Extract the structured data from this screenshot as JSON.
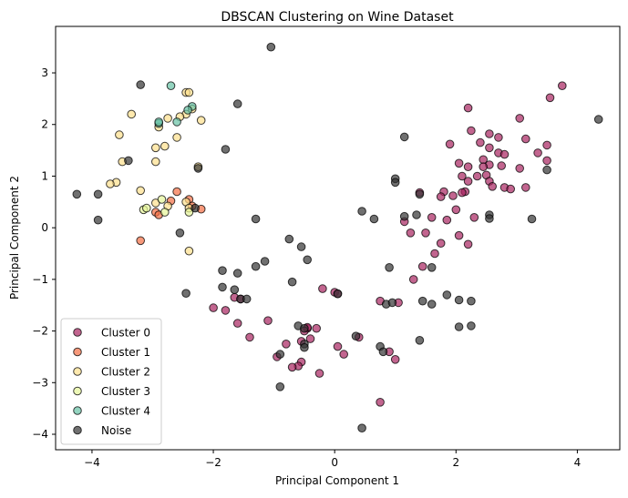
{
  "chart_data": {
    "type": "scatter",
    "title": "DBSCAN Clustering on Wine Dataset",
    "xlabel": "Principal Component 1",
    "ylabel": "Principal Component 2",
    "xlim": [
      -4.6,
      4.7
    ],
    "ylim": [
      -4.3,
      3.9
    ],
    "xticks": [
      -4,
      -2,
      0,
      2,
      4
    ],
    "yticks": [
      -4,
      -3,
      -2,
      -1,
      0,
      1,
      2,
      3
    ],
    "grid": false,
    "legend_position": "lower-left",
    "series": [
      {
        "name": "Cluster 0",
        "color": "#a8245f",
        "points": [
          [
            3.75,
            2.75
          ],
          [
            3.55,
            2.52
          ],
          [
            2.2,
            2.32
          ],
          [
            3.05,
            2.12
          ],
          [
            2.25,
            1.88
          ],
          [
            2.55,
            1.82
          ],
          [
            2.7,
            1.75
          ],
          [
            3.15,
            1.72
          ],
          [
            1.9,
            1.62
          ],
          [
            2.4,
            1.65
          ],
          [
            3.5,
            1.6
          ],
          [
            2.55,
            1.55
          ],
          [
            2.7,
            1.45
          ],
          [
            3.35,
            1.45
          ],
          [
            2.8,
            1.42
          ],
          [
            2.45,
            1.32
          ],
          [
            2.05,
            1.25
          ],
          [
            2.2,
            1.18
          ],
          [
            2.55,
            1.22
          ],
          [
            2.45,
            1.18
          ],
          [
            2.75,
            1.2
          ],
          [
            3.05,
            1.15
          ],
          [
            3.5,
            1.3
          ],
          [
            2.1,
            1.0
          ],
          [
            2.35,
            1.0
          ],
          [
            2.5,
            1.02
          ],
          [
            2.55,
            0.9
          ],
          [
            2.2,
            0.9
          ],
          [
            2.6,
            0.8
          ],
          [
            2.8,
            0.78
          ],
          [
            3.15,
            0.78
          ],
          [
            2.9,
            0.75
          ],
          [
            2.15,
            0.7
          ],
          [
            2.1,
            0.68
          ],
          [
            1.95,
            0.62
          ],
          [
            1.4,
            0.68
          ],
          [
            1.8,
            0.7
          ],
          [
            1.75,
            0.6
          ],
          [
            2.0,
            0.35
          ],
          [
            2.3,
            0.2
          ],
          [
            1.6,
            0.2
          ],
          [
            1.85,
            0.15
          ],
          [
            1.15,
            0.12
          ],
          [
            1.25,
            -0.1
          ],
          [
            1.5,
            -0.1
          ],
          [
            2.05,
            -0.15
          ],
          [
            2.2,
            -0.32
          ],
          [
            1.75,
            -0.3
          ],
          [
            1.65,
            -0.5
          ],
          [
            1.45,
            -0.75
          ],
          [
            1.3,
            -1.0
          ],
          [
            -1.65,
            -1.35
          ],
          [
            -1.55,
            -1.38
          ],
          [
            -2.0,
            -1.55
          ],
          [
            -1.8,
            -1.6
          ],
          [
            -1.1,
            -1.8
          ],
          [
            -1.6,
            -1.85
          ],
          [
            -0.2,
            -1.18
          ],
          [
            0.0,
            -1.25
          ],
          [
            0.05,
            -1.28
          ],
          [
            0.75,
            -1.42
          ],
          [
            1.05,
            -1.45
          ],
          [
            -0.45,
            -1.95
          ],
          [
            -0.45,
            -1.93
          ],
          [
            -0.3,
            -1.95
          ],
          [
            -0.5,
            -2.0
          ],
          [
            -1.4,
            -2.12
          ],
          [
            -0.4,
            -2.15
          ],
          [
            0.4,
            -2.12
          ],
          [
            -0.55,
            -2.2
          ],
          [
            -0.8,
            -2.25
          ],
          [
            0.05,
            -2.3
          ],
          [
            0.15,
            -2.45
          ],
          [
            0.9,
            -2.4
          ],
          [
            -0.95,
            -2.5
          ],
          [
            -0.55,
            -2.6
          ],
          [
            -0.6,
            -2.68
          ],
          [
            -0.7,
            -2.7
          ],
          [
            1.0,
            -2.55
          ],
          [
            -0.25,
            -2.82
          ],
          [
            0.75,
            -3.38
          ]
        ]
      },
      {
        "name": "Cluster 1",
        "color": "#f46d43",
        "points": [
          [
            -2.6,
            0.7
          ],
          [
            -2.4,
            0.55
          ],
          [
            -2.7,
            0.52
          ],
          [
            -2.95,
            0.3
          ],
          [
            -2.35,
            0.42
          ],
          [
            -2.2,
            0.36
          ],
          [
            -2.9,
            0.25
          ],
          [
            -3.2,
            -0.25
          ]
        ]
      },
      {
        "name": "Cluster 2",
        "color": "#fee08b",
        "points": [
          [
            -2.45,
            2.62
          ],
          [
            -2.4,
            2.62
          ],
          [
            -2.45,
            2.2
          ],
          [
            -2.35,
            2.3
          ],
          [
            -3.35,
            2.2
          ],
          [
            -2.75,
            2.12
          ],
          [
            -2.55,
            2.15
          ],
          [
            -2.2,
            2.08
          ],
          [
            -2.9,
            1.95
          ],
          [
            -3.55,
            1.8
          ],
          [
            -2.6,
            1.75
          ],
          [
            -2.8,
            1.58
          ],
          [
            -2.95,
            1.55
          ],
          [
            -2.95,
            1.28
          ],
          [
            -3.5,
            1.28
          ],
          [
            -2.25,
            1.18
          ],
          [
            -3.6,
            0.88
          ],
          [
            -3.7,
            0.85
          ],
          [
            -3.2,
            0.72
          ],
          [
            -2.45,
            0.5
          ],
          [
            -2.95,
            0.48
          ],
          [
            -2.75,
            0.42
          ],
          [
            -2.4,
            0.38
          ],
          [
            -2.4,
            -0.45
          ]
        ]
      },
      {
        "name": "Cluster 3",
        "color": "#e6f598",
        "points": [
          [
            -2.85,
            0.55
          ],
          [
            -3.15,
            0.35
          ],
          [
            -3.1,
            0.38
          ],
          [
            -2.8,
            0.3
          ],
          [
            -2.4,
            0.3
          ]
        ]
      },
      {
        "name": "Cluster 4",
        "color": "#66c2a5",
        "points": [
          [
            -2.7,
            2.75
          ],
          [
            -2.35,
            2.35
          ],
          [
            -2.42,
            2.28
          ],
          [
            -2.6,
            2.05
          ],
          [
            -2.9,
            2.02
          ],
          [
            -2.9,
            2.05
          ]
        ]
      },
      {
        "name": "Noise",
        "color": "#333333",
        "points": [
          [
            -1.05,
            3.5
          ],
          [
            -3.2,
            2.77
          ],
          [
            -1.6,
            2.4
          ],
          [
            4.35,
            2.1
          ],
          [
            1.15,
            1.76
          ],
          [
            -1.8,
            1.52
          ],
          [
            -3.4,
            1.3
          ],
          [
            3.5,
            1.12
          ],
          [
            -2.25,
            1.15
          ],
          [
            1.0,
            0.95
          ],
          [
            1.0,
            0.88
          ],
          [
            -4.25,
            0.65
          ],
          [
            -3.9,
            0.65
          ],
          [
            1.4,
            0.65
          ],
          [
            -2.3,
            0.38
          ],
          [
            0.45,
            0.32
          ],
          [
            1.15,
            0.22
          ],
          [
            1.35,
            0.25
          ],
          [
            2.55,
            0.25
          ],
          [
            2.55,
            0.18
          ],
          [
            3.25,
            0.17
          ],
          [
            -3.9,
            0.15
          ],
          [
            -1.3,
            0.17
          ],
          [
            0.65,
            0.17
          ],
          [
            -2.55,
            -0.1
          ],
          [
            -0.75,
            -0.22
          ],
          [
            -0.55,
            -0.37
          ],
          [
            -0.45,
            -0.62
          ],
          [
            -1.15,
            -0.65
          ],
          [
            -1.3,
            -0.75
          ],
          [
            0.9,
            -0.77
          ],
          [
            1.6,
            -0.77
          ],
          [
            -1.85,
            -0.83
          ],
          [
            -1.6,
            -0.88
          ],
          [
            -0.7,
            -1.05
          ],
          [
            -1.85,
            -1.15
          ],
          [
            -1.65,
            -1.2
          ],
          [
            -2.45,
            -1.27
          ],
          [
            0.05,
            -1.28
          ],
          [
            1.85,
            -1.3
          ],
          [
            -1.55,
            -1.38
          ],
          [
            -1.45,
            -1.38
          ],
          [
            1.45,
            -1.42
          ],
          [
            2.25,
            -1.42
          ],
          [
            1.6,
            -1.48
          ],
          [
            2.05,
            -1.4
          ],
          [
            0.85,
            -1.48
          ],
          [
            0.95,
            -1.45
          ],
          [
            -0.6,
            -1.9
          ],
          [
            -0.5,
            -1.95
          ],
          [
            2.05,
            -1.92
          ],
          [
            2.25,
            -1.9
          ],
          [
            0.35,
            -2.1
          ],
          [
            -0.5,
            -2.25
          ],
          [
            1.4,
            -2.18
          ],
          [
            -0.5,
            -2.32
          ],
          [
            0.75,
            -2.3
          ],
          [
            0.8,
            -2.4
          ],
          [
            -0.9,
            -2.45
          ],
          [
            -0.9,
            -3.08
          ],
          [
            0.45,
            -3.88
          ]
        ]
      }
    ]
  }
}
